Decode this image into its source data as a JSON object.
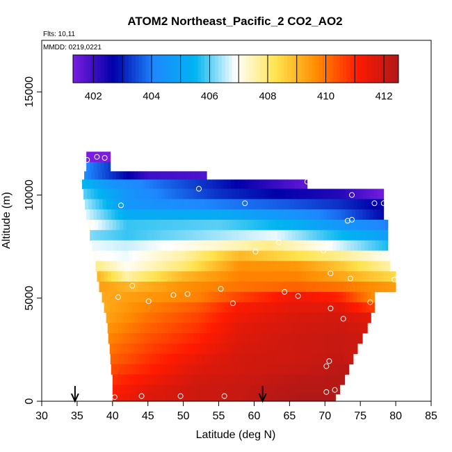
{
  "chart_data": {
    "type": "heatmap",
    "title": "ATOM2 Northeast_Pacific_2 CO2_AO2",
    "annotations": [
      "Flts: 10,11",
      "MMDD: 0219,0221"
    ],
    "xlabel": "Latitude (deg N)",
    "ylabel": "Altitude (m)",
    "xlim": [
      30,
      85
    ],
    "ylim": [
      0,
      17500
    ],
    "x_ticks": [
      "30",
      "35",
      "40",
      "45",
      "50",
      "55",
      "60",
      "65",
      "70",
      "75",
      "80",
      "85"
    ],
    "y_ticks": [
      "0",
      "5000",
      "10000",
      "15000"
    ],
    "colorbar": {
      "range": [
        401.3,
        412.5
      ],
      "tick_labels": [
        "402",
        "404",
        "406",
        "408",
        "410",
        "412"
      ],
      "colors": [
        "#7a1de0",
        "#0000a8",
        "#1e88ff",
        "#00b4f0",
        "#ffffff",
        "#ffe34d",
        "#ff8a00",
        "#ff1a00",
        "#b01818"
      ]
    },
    "arrow_latitudes": [
      34.7,
      61.2
    ],
    "grid": false,
    "profile": [
      {
        "alt": 11850,
        "lat_min": 36.3,
        "lat_max": 39.7
      },
      {
        "alt": 11350,
        "lat_min": 36.3,
        "lat_max": 39.7
      },
      {
        "alt": 10950,
        "lat_min": 36.0,
        "lat_max": 53.3
      },
      {
        "alt": 10550,
        "lat_min": 35.7,
        "lat_max": 67.5
      },
      {
        "alt": 10050,
        "lat_min": 35.9,
        "lat_max": 78.3
      },
      {
        "alt": 9550,
        "lat_min": 36.1,
        "lat_max": 78.3
      },
      {
        "alt": 9050,
        "lat_min": 36.3,
        "lat_max": 78.3
      },
      {
        "alt": 8550,
        "lat_min": 36.5,
        "lat_max": 78.9
      },
      {
        "alt": 8050,
        "lat_min": 36.8,
        "lat_max": 78.9
      },
      {
        "alt": 7550,
        "lat_min": 37.1,
        "lat_max": 78.9
      },
      {
        "alt": 7050,
        "lat_min": 37.3,
        "lat_max": 79.2
      },
      {
        "alt": 6550,
        "lat_min": 37.6,
        "lat_max": 79.2
      },
      {
        "alt": 6050,
        "lat_min": 37.8,
        "lat_max": 80.0
      },
      {
        "alt": 5550,
        "lat_min": 38.1,
        "lat_max": 80.0
      },
      {
        "alt": 5050,
        "lat_min": 38.5,
        "lat_max": 77.0
      },
      {
        "alt": 4550,
        "lat_min": 38.8,
        "lat_max": 77.0
      },
      {
        "alt": 4050,
        "lat_min": 39.1,
        "lat_max": 76.5
      },
      {
        "alt": 3550,
        "lat_min": 39.3,
        "lat_max": 76.0
      },
      {
        "alt": 3050,
        "lat_min": 39.4,
        "lat_max": 75.3
      },
      {
        "alt": 2550,
        "lat_min": 39.6,
        "lat_max": 74.6
      },
      {
        "alt": 2050,
        "lat_min": 39.7,
        "lat_max": 74.0
      },
      {
        "alt": 1550,
        "lat_min": 39.8,
        "lat_max": 73.4
      },
      {
        "alt": 1050,
        "lat_min": 40.0,
        "lat_max": 72.8
      },
      {
        "alt": 550,
        "lat_min": 40.0,
        "lat_max": 72.1
      },
      {
        "alt": 150,
        "lat_min": 40.0,
        "lat_max": 71.5
      }
    ],
    "field_anchors": [
      {
        "alt": 11850,
        "values": [
          [
            36,
            401.3
          ],
          [
            40,
            401.3
          ]
        ]
      },
      {
        "alt": 11000,
        "values": [
          [
            36,
            404.2
          ],
          [
            45,
            402.0
          ],
          [
            53,
            401.8
          ]
        ]
      },
      {
        "alt": 10550,
        "values": [
          [
            36,
            405.5
          ],
          [
            40,
            404.5
          ],
          [
            55,
            403.0
          ],
          [
            67,
            401.6
          ]
        ]
      },
      {
        "alt": 10050,
        "values": [
          [
            36,
            406.0
          ],
          [
            42,
            404.5
          ],
          [
            55,
            403.2
          ],
          [
            65,
            402.6
          ],
          [
            72,
            402.3
          ],
          [
            78,
            401.4
          ]
        ]
      },
      {
        "alt": 9550,
        "values": [
          [
            36,
            406.5
          ],
          [
            42,
            404.6
          ],
          [
            55,
            404.0
          ],
          [
            65,
            403.6
          ],
          [
            72,
            403.2
          ],
          [
            78,
            402.6
          ]
        ]
      },
      {
        "alt": 9050,
        "values": [
          [
            36,
            406.8
          ],
          [
            42,
            405.2
          ],
          [
            55,
            405.2
          ],
          [
            65,
            404.5
          ],
          [
            72,
            403.8
          ],
          [
            78,
            402.8
          ]
        ]
      },
      {
        "alt": 8550,
        "values": [
          [
            37,
            407.0
          ],
          [
            42,
            405.8
          ],
          [
            55,
            406.0
          ],
          [
            65,
            405.4
          ],
          [
            72,
            404.6
          ],
          [
            79,
            404.0
          ]
        ]
      },
      {
        "alt": 8050,
        "values": [
          [
            37,
            406.2
          ],
          [
            42,
            405.8
          ],
          [
            55,
            406.4
          ],
          [
            63,
            406.8
          ],
          [
            70,
            405.8
          ],
          [
            79,
            404.8
          ]
        ]
      },
      {
        "alt": 7550,
        "values": [
          [
            37,
            406.8
          ],
          [
            42,
            406.6
          ],
          [
            55,
            407.3
          ],
          [
            62,
            407.8
          ],
          [
            70,
            407.0
          ],
          [
            79,
            405.6
          ]
        ]
      },
      {
        "alt": 7050,
        "values": [
          [
            37,
            407.0
          ],
          [
            42,
            406.8
          ],
          [
            50,
            407.6
          ],
          [
            58,
            409.0
          ],
          [
            64,
            408.5
          ],
          [
            72,
            407.8
          ],
          [
            79,
            407.0
          ]
        ]
      },
      {
        "alt": 6550,
        "values": [
          [
            38,
            407.8
          ],
          [
            42,
            407.0
          ],
          [
            50,
            408.0
          ],
          [
            58,
            409.6
          ],
          [
            66,
            409.5
          ],
          [
            72,
            408.8
          ],
          [
            79,
            407.6
          ]
        ]
      },
      {
        "alt": 6050,
        "values": [
          [
            38,
            409.0
          ],
          [
            42,
            407.6
          ],
          [
            50,
            409.0
          ],
          [
            58,
            409.8
          ],
          [
            66,
            409.8
          ],
          [
            72,
            409.3
          ],
          [
            80,
            408.4
          ]
        ]
      },
      {
        "alt": 5550,
        "values": [
          [
            38,
            409.4
          ],
          [
            43,
            409.0
          ],
          [
            50,
            409.6
          ],
          [
            58,
            410.0
          ],
          [
            66,
            410.2
          ],
          [
            72,
            410.0
          ],
          [
            80,
            409.4
          ]
        ]
      },
      {
        "alt": 5050,
        "values": [
          [
            38,
            409.2
          ],
          [
            45,
            409.5
          ],
          [
            52,
            409.8
          ],
          [
            58,
            410.6
          ],
          [
            66,
            411.4
          ],
          [
            72,
            411.0
          ],
          [
            77,
            409.6
          ]
        ]
      },
      {
        "alt": 4550,
        "values": [
          [
            39,
            409.2
          ],
          [
            45,
            409.8
          ],
          [
            52,
            410.3
          ],
          [
            58,
            411.2
          ],
          [
            66,
            411.6
          ],
          [
            72,
            411.6
          ],
          [
            77,
            410.6
          ]
        ]
      },
      {
        "alt": 4050,
        "values": [
          [
            39,
            409.3
          ],
          [
            45,
            410.0
          ],
          [
            52,
            410.6
          ],
          [
            58,
            411.4
          ],
          [
            66,
            411.8
          ],
          [
            72,
            411.9
          ],
          [
            76,
            411.6
          ]
        ]
      },
      {
        "alt": 3550,
        "values": [
          [
            39,
            409.5
          ],
          [
            45,
            410.2
          ],
          [
            52,
            410.8
          ],
          [
            58,
            411.6
          ],
          [
            66,
            411.9
          ],
          [
            72,
            412.0
          ],
          [
            76,
            411.8
          ]
        ]
      },
      {
        "alt": 3050,
        "values": [
          [
            39,
            409.7
          ],
          [
            45,
            410.4
          ],
          [
            52,
            411.0
          ],
          [
            58,
            411.7
          ],
          [
            66,
            412.0
          ],
          [
            72,
            412.1
          ],
          [
            75,
            412.0
          ]
        ]
      },
      {
        "alt": 2550,
        "values": [
          [
            39,
            409.9
          ],
          [
            45,
            410.6
          ],
          [
            52,
            411.2
          ],
          [
            58,
            411.8
          ],
          [
            66,
            412.0
          ],
          [
            72,
            412.1
          ],
          [
            74,
            412.0
          ]
        ]
      },
      {
        "alt": 2050,
        "values": [
          [
            40,
            410.2
          ],
          [
            45,
            410.8
          ],
          [
            52,
            411.5
          ],
          [
            58,
            411.9
          ],
          [
            66,
            412.0
          ],
          [
            72,
            412.2
          ],
          [
            74,
            412.0
          ]
        ]
      },
      {
        "alt": 1550,
        "values": [
          [
            40,
            410.5
          ],
          [
            45,
            411.0
          ],
          [
            52,
            411.7
          ],
          [
            58,
            411.9
          ],
          [
            66,
            412.1
          ],
          [
            72,
            412.3
          ]
        ]
      },
      {
        "alt": 1050,
        "values": [
          [
            40,
            410.8
          ],
          [
            45,
            411.3
          ],
          [
            52,
            411.9
          ],
          [
            58,
            412.0
          ],
          [
            66,
            412.3
          ],
          [
            72,
            412.4
          ]
        ]
      },
      {
        "alt": 550,
        "values": [
          [
            40,
            411.0
          ],
          [
            45,
            411.6
          ],
          [
            52,
            412.0
          ],
          [
            58,
            412.1
          ],
          [
            66,
            412.4
          ],
          [
            72,
            412.4
          ]
        ]
      },
      {
        "alt": 150,
        "values": [
          [
            40,
            411.2
          ],
          [
            45,
            411.7
          ],
          [
            52,
            412.0
          ],
          [
            58,
            412.1
          ],
          [
            66,
            412.5
          ],
          [
            71,
            412.5
          ]
        ]
      }
    ],
    "sample_points": [
      [
        36.4,
        11700
      ],
      [
        37.8,
        11850
      ],
      [
        38.9,
        11800
      ],
      [
        35.2,
        10950
      ],
      [
        67.5,
        10650
      ],
      [
        52.2,
        10300
      ],
      [
        73.8,
        10000
      ],
      [
        41.2,
        9500
      ],
      [
        58.7,
        9600
      ],
      [
        77.0,
        9600
      ],
      [
        78.3,
        9600
      ],
      [
        73.2,
        8750
      ],
      [
        73.8,
        8800
      ],
      [
        63.5,
        7700
      ],
      [
        60.2,
        7250
      ],
      [
        69.8,
        7300
      ],
      [
        39.7,
        7000
      ],
      [
        70.8,
        6200
      ],
      [
        73.6,
        5950
      ],
      [
        79.8,
        5900
      ],
      [
        42.8,
        5600
      ],
      [
        55.3,
        5450
      ],
      [
        40.8,
        5050
      ],
      [
        45.1,
        4850
      ],
      [
        48.6,
        5150
      ],
      [
        50.6,
        5200
      ],
      [
        57.0,
        4750
      ],
      [
        64.3,
        5300
      ],
      [
        66.2,
        5100
      ],
      [
        76.4,
        4800
      ],
      [
        70.8,
        4500
      ],
      [
        72.6,
        4000
      ],
      [
        70.6,
        1950
      ],
      [
        70.2,
        1700
      ],
      [
        70.2,
        450
      ],
      [
        71.4,
        550
      ],
      [
        40.3,
        200
      ],
      [
        44.1,
        250
      ],
      [
        49.6,
        250
      ],
      [
        55.8,
        250
      ]
    ]
  }
}
